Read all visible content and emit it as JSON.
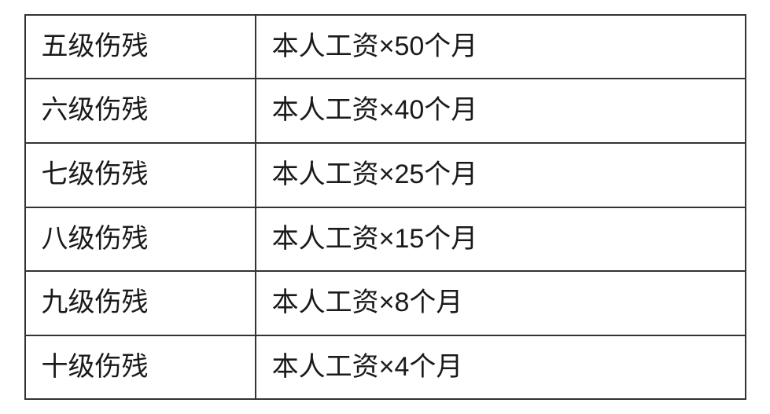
{
  "table": {
    "type": "table",
    "columns": [
      {
        "key": "level",
        "width_pct": 32,
        "align": "left"
      },
      {
        "key": "formula",
        "width_pct": 68,
        "align": "left"
      }
    ],
    "rows": [
      {
        "level": "五级伤残",
        "formula": "本人工资×50个月"
      },
      {
        "level": "六级伤残",
        "formula": "本人工资×40个月"
      },
      {
        "level": "七级伤残",
        "formula": "本人工资×25个月"
      },
      {
        "level": "八级伤残",
        "formula": "本人工资×15个月"
      },
      {
        "level": "九级伤残",
        "formula": "本人工资×8个月"
      },
      {
        "level": "十级伤残",
        "formula": "本人工资×4个月"
      }
    ],
    "border_color": "#333333",
    "border_width": 2,
    "background_color": "#ffffff",
    "text_color": "#1a1a1a",
    "font_size": 34,
    "cell_padding": "16px 20px"
  }
}
